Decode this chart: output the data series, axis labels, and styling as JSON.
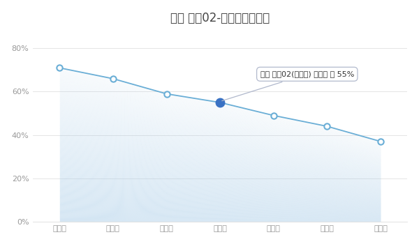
{
  "title": "领克 领克02-七年保值率走势",
  "x_labels": [
    "第一年",
    "第二年",
    "第三年",
    "第四年",
    "第五年",
    "第六年",
    "第七年"
  ],
  "y_values": [
    0.71,
    0.66,
    0.59,
    0.55,
    0.49,
    0.44,
    0.37
  ],
  "highlighted_index": 3,
  "tooltip_text": "领克 领克02(保值率) 第四年 是 55%",
  "y_ticks": [
    0.0,
    0.2,
    0.4,
    0.6,
    0.8
  ],
  "y_tick_labels": [
    "0%",
    "20%",
    "40%",
    "60%",
    "80%"
  ],
  "line_color": "#6aaed6",
  "fill_color": "#a8cce8",
  "highlight_color": "#3a72c4",
  "marker_face_color": "#ffffff",
  "marker_edge_color": "#6aaed6",
  "background_color": "#ffffff",
  "plot_bg_color": "#ffffff",
  "title_fontsize": 12,
  "axis_fontsize": 8,
  "tooltip_fontsize": 8,
  "grid_color": "#e0e0e0",
  "tick_color": "#999999"
}
